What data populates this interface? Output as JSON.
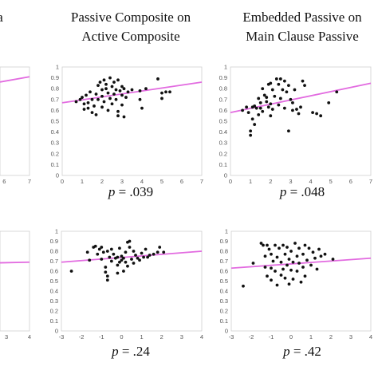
{
  "chart_data": [
    {
      "id": "left-top",
      "type": "scatter",
      "title": [
        "a"
      ],
      "p_label": "",
      "x_ticks": [
        "6",
        "7"
      ],
      "x_tick_values": [
        6,
        7
      ],
      "y_ticks": [],
      "y_tick_values": [],
      "xlim": [
        0,
        7
      ],
      "ylim": [
        0,
        1
      ],
      "regression": {
        "x0": 0,
        "y0": 0.62,
        "x1": 7,
        "y1": 0.91
      },
      "points": []
    },
    {
      "id": "passive-composite",
      "type": "scatter",
      "title": [
        "Passive Composite on",
        "Active Composite"
      ],
      "p_prefix": "p",
      "p_label": " = .039",
      "x_ticks": [
        "0",
        "1",
        "2",
        "3",
        "4",
        "5",
        "6",
        "7"
      ],
      "x_tick_values": [
        0,
        1,
        2,
        3,
        4,
        5,
        6,
        7
      ],
      "y_ticks": [
        "0",
        "0.1",
        "0.2",
        "0.3",
        "0.4",
        "0.5",
        "0.6",
        "0.7",
        "0.8",
        "0.9",
        "1"
      ],
      "y_tick_values": [
        0,
        0.1,
        0.2,
        0.3,
        0.4,
        0.5,
        0.6,
        0.7,
        0.8,
        0.9,
        1
      ],
      "xlim": [
        0,
        7
      ],
      "ylim": [
        0,
        1
      ],
      "regression": {
        "x0": 0,
        "y0": 0.67,
        "x1": 7,
        "y1": 0.86
      },
      "points": [
        [
          0.7,
          0.68
        ],
        [
          0.9,
          0.7
        ],
        [
          1.0,
          0.72
        ],
        [
          1.1,
          0.66
        ],
        [
          1.1,
          0.61
        ],
        [
          1.2,
          0.74
        ],
        [
          1.3,
          0.67
        ],
        [
          1.3,
          0.62
        ],
        [
          1.4,
          0.77
        ],
        [
          1.5,
          0.7
        ],
        [
          1.5,
          0.58
        ],
        [
          1.6,
          0.64
        ],
        [
          1.7,
          0.75
        ],
        [
          1.7,
          0.56
        ],
        [
          1.8,
          0.83
        ],
        [
          1.8,
          0.7
        ],
        [
          1.9,
          0.86
        ],
        [
          2.0,
          0.79
        ],
        [
          2.0,
          0.73
        ],
        [
          2.0,
          0.63
        ],
        [
          2.1,
          0.88
        ],
        [
          2.1,
          0.68
        ],
        [
          2.2,
          0.8
        ],
        [
          2.2,
          0.84
        ],
        [
          2.3,
          0.76
        ],
        [
          2.3,
          0.6
        ],
        [
          2.4,
          0.9
        ],
        [
          2.4,
          0.71
        ],
        [
          2.5,
          0.82
        ],
        [
          2.5,
          0.66
        ],
        [
          2.6,
          0.86
        ],
        [
          2.6,
          0.75
        ],
        [
          2.7,
          0.79
        ],
        [
          2.7,
          0.7
        ],
        [
          2.8,
          0.88
        ],
        [
          2.8,
          0.59
        ],
        [
          2.8,
          0.55
        ],
        [
          2.9,
          0.78
        ],
        [
          3.0,
          0.82
        ],
        [
          3.0,
          0.74
        ],
        [
          3.0,
          0.65
        ],
        [
          3.1,
          0.8
        ],
        [
          3.1,
          0.54
        ],
        [
          3.2,
          0.72
        ],
        [
          3.3,
          0.77
        ],
        [
          3.5,
          0.79
        ],
        [
          3.9,
          0.78
        ],
        [
          3.9,
          0.7
        ],
        [
          4.0,
          0.62
        ],
        [
          4.2,
          0.8
        ],
        [
          4.8,
          0.89
        ],
        [
          5.0,
          0.76
        ],
        [
          5.0,
          0.71
        ],
        [
          5.2,
          0.77
        ],
        [
          5.4,
          0.77
        ]
      ]
    },
    {
      "id": "embedded-passive",
      "type": "scatter",
      "title": [
        "Embedded Passive on",
        "Main Clause Passive"
      ],
      "p_prefix": "p",
      "p_label": " = .048",
      "x_ticks": [
        "0",
        "1",
        "2",
        "3",
        "4",
        "5",
        "6",
        "7"
      ],
      "x_tick_values": [
        0,
        1,
        2,
        3,
        4,
        5,
        6,
        7
      ],
      "y_ticks": [
        "0",
        "0.1",
        "0.2",
        "0.3",
        "0.4",
        "0.5",
        "0.6",
        "0.7",
        "0.8",
        "0.9",
        "1"
      ],
      "y_tick_values": [
        0,
        0.1,
        0.2,
        0.3,
        0.4,
        0.5,
        0.6,
        0.7,
        0.8,
        0.9,
        1
      ],
      "xlim": [
        0,
        7
      ],
      "ylim": [
        0,
        1
      ],
      "regression": {
        "x0": 0,
        "y0": 0.58,
        "x1": 7,
        "y1": 0.85
      },
      "points": [
        [
          0.6,
          0.6
        ],
        [
          0.8,
          0.63
        ],
        [
          0.9,
          0.58
        ],
        [
          1.0,
          0.41
        ],
        [
          1.0,
          0.37
        ],
        [
          1.1,
          0.63
        ],
        [
          1.1,
          0.52
        ],
        [
          1.2,
          0.64
        ],
        [
          1.2,
          0.47
        ],
        [
          1.3,
          0.62
        ],
        [
          1.4,
          0.71
        ],
        [
          1.4,
          0.56
        ],
        [
          1.5,
          0.67
        ],
        [
          1.5,
          0.62
        ],
        [
          1.6,
          0.8
        ],
        [
          1.6,
          0.59
        ],
        [
          1.7,
          0.74
        ],
        [
          1.8,
          0.72
        ],
        [
          1.8,
          0.68
        ],
        [
          1.9,
          0.84
        ],
        [
          1.9,
          0.63
        ],
        [
          2.0,
          0.85
        ],
        [
          2.0,
          0.66
        ],
        [
          2.0,
          0.55
        ],
        [
          2.1,
          0.79
        ],
        [
          2.1,
          0.61
        ],
        [
          2.2,
          0.73
        ],
        [
          2.3,
          0.89
        ],
        [
          2.4,
          0.84
        ],
        [
          2.4,
          0.65
        ],
        [
          2.5,
          0.89
        ],
        [
          2.5,
          0.71
        ],
        [
          2.6,
          0.79
        ],
        [
          2.7,
          0.87
        ],
        [
          2.7,
          0.62
        ],
        [
          2.8,
          0.77
        ],
        [
          2.9,
          0.83
        ],
        [
          2.9,
          0.41
        ],
        [
          3.0,
          0.7
        ],
        [
          3.1,
          0.67
        ],
        [
          3.1,
          0.6
        ],
        [
          3.2,
          0.79
        ],
        [
          3.3,
          0.61
        ],
        [
          3.4,
          0.57
        ],
        [
          3.5,
          0.63
        ],
        [
          3.6,
          0.87
        ],
        [
          3.7,
          0.83
        ],
        [
          4.1,
          0.58
        ],
        [
          4.3,
          0.57
        ],
        [
          4.5,
          0.55
        ],
        [
          4.9,
          0.67
        ],
        [
          5.3,
          0.77
        ]
      ]
    },
    {
      "id": "left-bottom",
      "type": "scatter",
      "title": [],
      "p_label": "",
      "x_ticks": [
        "3",
        "4"
      ],
      "x_tick_values": [
        3,
        4
      ],
      "y_ticks": [],
      "y_tick_values": [],
      "xlim": [
        -3,
        4
      ],
      "ylim": [
        0,
        1
      ],
      "regression": {
        "x0": -3,
        "y0": 0.655,
        "x1": 4,
        "y1": 0.69
      },
      "points": []
    },
    {
      "id": "bottom-middle",
      "type": "scatter",
      "title": [],
      "p_prefix": "p",
      "p_label": " = .24",
      "x_ticks": [
        "-3",
        "-2",
        "-1",
        "0",
        "1",
        "2",
        "3",
        "4"
      ],
      "x_tick_values": [
        -3,
        -2,
        -1,
        0,
        1,
        2,
        3,
        4
      ],
      "y_ticks": [
        "0",
        "0.1",
        "0.2",
        "0.3",
        "0.4",
        "0.5",
        "0.6",
        "0.7",
        "0.8",
        "0.9",
        "1"
      ],
      "y_tick_values": [
        0,
        0.1,
        0.2,
        0.3,
        0.4,
        0.5,
        0.6,
        0.7,
        0.8,
        0.9,
        1
      ],
      "xlim": [
        -3,
        4
      ],
      "ylim": [
        0,
        1
      ],
      "regression": {
        "x0": -3,
        "y0": 0.69,
        "x1": 4,
        "y1": 0.8
      },
      "points": [
        [
          -2.5,
          0.6
        ],
        [
          -1.7,
          0.79
        ],
        [
          -1.6,
          0.71
        ],
        [
          -1.4,
          0.84
        ],
        [
          -1.3,
          0.85
        ],
        [
          -1.2,
          0.77
        ],
        [
          -1.1,
          0.82
        ],
        [
          -1.0,
          0.84
        ],
        [
          -1.0,
          0.72
        ],
        [
          -0.9,
          0.79
        ],
        [
          -0.8,
          0.64
        ],
        [
          -0.8,
          0.59
        ],
        [
          -0.7,
          0.8
        ],
        [
          -0.7,
          0.55
        ],
        [
          -0.7,
          0.51
        ],
        [
          -0.6,
          0.74
        ],
        [
          -0.5,
          0.82
        ],
        [
          -0.5,
          0.7
        ],
        [
          -0.4,
          0.77
        ],
        [
          -0.3,
          0.73
        ],
        [
          -0.2,
          0.74
        ],
        [
          -0.2,
          0.66
        ],
        [
          -0.2,
          0.58
        ],
        [
          -0.1,
          0.83
        ],
        [
          -0.1,
          0.69
        ],
        [
          0.0,
          0.75
        ],
        [
          0.0,
          0.71
        ],
        [
          0.1,
          0.73
        ],
        [
          0.1,
          0.6
        ],
        [
          0.2,
          0.79
        ],
        [
          0.2,
          0.69
        ],
        [
          0.3,
          0.89
        ],
        [
          0.3,
          0.65
        ],
        [
          0.4,
          0.84
        ],
        [
          0.4,
          0.9
        ],
        [
          0.5,
          0.72
        ],
        [
          0.6,
          0.8
        ],
        [
          0.6,
          0.68
        ],
        [
          0.7,
          0.76
        ],
        [
          0.8,
          0.73
        ],
        [
          0.9,
          0.71
        ],
        [
          1.0,
          0.78
        ],
        [
          1.1,
          0.74
        ],
        [
          1.2,
          0.82
        ],
        [
          1.3,
          0.74
        ],
        [
          1.4,
          0.76
        ],
        [
          1.6,
          0.77
        ],
        [
          1.8,
          0.79
        ],
        [
          1.9,
          0.84
        ],
        [
          2.1,
          0.79
        ]
      ]
    },
    {
      "id": "bottom-right",
      "type": "scatter",
      "title": [],
      "p_prefix": "p",
      "p_label": " = .42",
      "x_ticks": [
        "-3",
        "-2",
        "-1",
        "0",
        "1",
        "2",
        "3",
        "4"
      ],
      "x_tick_values": [
        -3,
        -2,
        -1,
        0,
        1,
        2,
        3,
        4
      ],
      "y_ticks": [
        "0",
        "0.1",
        "0.2",
        "0.3",
        "0.4",
        "0.5",
        "0.6",
        "0.7",
        "0.8",
        "0.9",
        "1"
      ],
      "y_tick_values": [
        0,
        0.1,
        0.2,
        0.3,
        0.4,
        0.5,
        0.6,
        0.7,
        0.8,
        0.9,
        1
      ],
      "xlim": [
        -3,
        4
      ],
      "ylim": [
        0,
        1
      ],
      "regression": {
        "x0": -3,
        "y0": 0.63,
        "x1": 4,
        "y1": 0.73
      },
      "points": [
        [
          -2.4,
          0.45
        ],
        [
          -1.9,
          0.68
        ],
        [
          -1.5,
          0.88
        ],
        [
          -1.4,
          0.86
        ],
        [
          -1.3,
          0.75
        ],
        [
          -1.3,
          0.64
        ],
        [
          -1.2,
          0.86
        ],
        [
          -1.2,
          0.55
        ],
        [
          -1.1,
          0.82
        ],
        [
          -1.0,
          0.77
        ],
        [
          -1.0,
          0.63
        ],
        [
          -1.0,
          0.51
        ],
        [
          -0.9,
          0.7
        ],
        [
          -0.8,
          0.86
        ],
        [
          -0.8,
          0.6
        ],
        [
          -0.7,
          0.74
        ],
        [
          -0.7,
          0.46
        ],
        [
          -0.6,
          0.83
        ],
        [
          -0.5,
          0.69
        ],
        [
          -0.5,
          0.56
        ],
        [
          -0.4,
          0.86
        ],
        [
          -0.4,
          0.62
        ],
        [
          -0.3,
          0.77
        ],
        [
          -0.3,
          0.53
        ],
        [
          -0.2,
          0.84
        ],
        [
          -0.2,
          0.66
        ],
        [
          -0.1,
          0.72
        ],
        [
          -0.1,
          0.47
        ],
        [
          0.0,
          0.8
        ],
        [
          0.0,
          0.61
        ],
        [
          0.1,
          0.69
        ],
        [
          0.1,
          0.52
        ],
        [
          0.2,
          0.88
        ],
        [
          0.3,
          0.75
        ],
        [
          0.3,
          0.6
        ],
        [
          0.4,
          0.83
        ],
        [
          0.4,
          0.68
        ],
        [
          0.5,
          0.49
        ],
        [
          0.6,
          0.77
        ],
        [
          0.6,
          0.64
        ],
        [
          0.7,
          0.86
        ],
        [
          0.7,
          0.55
        ],
        [
          0.8,
          0.71
        ],
        [
          0.9,
          0.83
        ],
        [
          1.0,
          0.66
        ],
        [
          1.1,
          0.79
        ],
        [
          1.2,
          0.73
        ],
        [
          1.3,
          0.62
        ],
        [
          1.4,
          0.82
        ],
        [
          1.5,
          0.75
        ],
        [
          1.7,
          0.77
        ],
        [
          2.1,
          0.72
        ]
      ]
    }
  ]
}
